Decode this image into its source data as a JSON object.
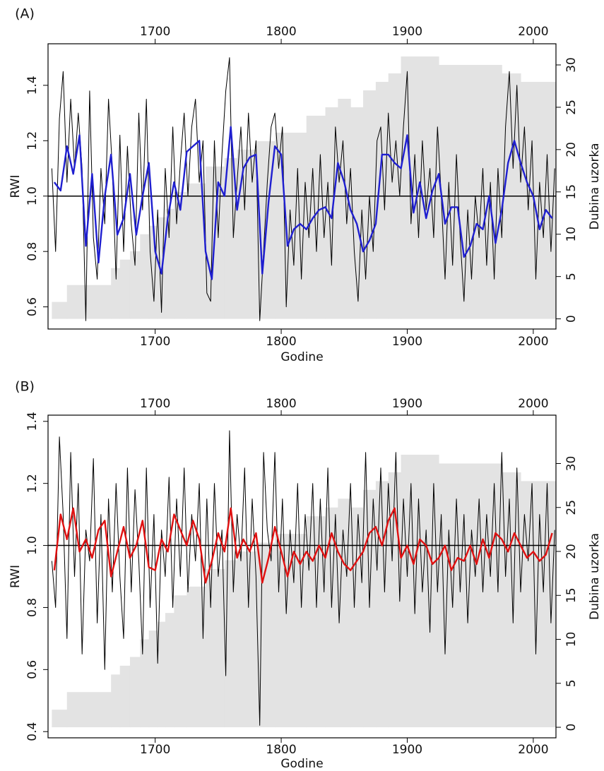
{
  "chart_data": [
    {
      "type": "line",
      "label": "(A)",
      "xlabel": "Godine",
      "ylabel": "RWI",
      "y2label": "Dubina uzorka",
      "xlim": [
        1615,
        2018
      ],
      "xticks": [
        1700,
        1800,
        1900,
        2000
      ],
      "ylim": [
        0.52,
        1.55
      ],
      "yticks": [
        0.6,
        0.8,
        {
          "value": 1,
          "label": "1.0"
        },
        1.2,
        1.4
      ],
      "y2lim": [
        -1.2,
        32.5
      ],
      "y2ticks": [
        0,
        5,
        10,
        15,
        20,
        25,
        30
      ],
      "reference_line": 1,
      "sample_depth": {
        "color": "#e3e3e3",
        "axis": "y2",
        "x": [
          1618,
          1630,
          1665,
          1672,
          1680,
          1688,
          1695,
          1702,
          1708,
          1715,
          1725,
          1740,
          1755,
          1765,
          1780,
          1795,
          1820,
          1835,
          1845,
          1855,
          1865,
          1875,
          1885,
          1895,
          1925,
          1975,
          1990
        ],
        "values": [
          2,
          4,
          6,
          7,
          8,
          10,
          11,
          12,
          13,
          15,
          16,
          18,
          19,
          20,
          21,
          22,
          24,
          25,
          26,
          25,
          27,
          28,
          29,
          31,
          30,
          29,
          28
        ]
      },
      "series": [
        {
          "color": "#000000",
          "x": [
            1618,
            1621,
            1624,
            1627,
            1630,
            1633,
            1636,
            1639,
            1642,
            1645,
            1648,
            1651,
            1654,
            1657,
            1660,
            1663,
            1666,
            1669,
            1672,
            1675,
            1678,
            1681,
            1684,
            1687,
            1690,
            1693,
            1696,
            1699,
            1702,
            1705,
            1708,
            1711,
            1714,
            1717,
            1720,
            1723,
            1726,
            1729,
            1732,
            1735,
            1738,
            1741,
            1744,
            1747,
            1750,
            1753,
            1756,
            1759,
            1762,
            1765,
            1768,
            1771,
            1774,
            1777,
            1780,
            1783,
            1786,
            1789,
            1792,
            1795,
            1798,
            1801,
            1804,
            1807,
            1810,
            1813,
            1816,
            1819,
            1822,
            1825,
            1828,
            1831,
            1834,
            1837,
            1840,
            1843,
            1846,
            1849,
            1852,
            1855,
            1858,
            1861,
            1864,
            1867,
            1870,
            1873,
            1876,
            1879,
            1882,
            1885,
            1888,
            1891,
            1894,
            1897,
            1900,
            1903,
            1906,
            1909,
            1912,
            1915,
            1918,
            1921,
            1924,
            1927,
            1930,
            1933,
            1936,
            1939,
            1942,
            1945,
            1948,
            1951,
            1954,
            1957,
            1960,
            1963,
            1966,
            1969,
            1972,
            1975,
            1978,
            1981,
            1984,
            1987,
            1990,
            1993,
            1996,
            1999,
            2002,
            2005,
            2008,
            2011,
            2014,
            2017
          ],
          "values": [
            1.1,
            0.8,
            1.28,
            1.45,
            1.05,
            1.35,
            1.1,
            1.3,
            1.1,
            0.55,
            1.38,
            0.85,
            0.7,
            1.1,
            0.9,
            1.35,
            1.1,
            0.7,
            1.22,
            0.8,
            1.18,
            0.9,
            0.75,
            1.3,
            0.95,
            1.35,
            0.8,
            0.62,
            0.95,
            0.58,
            1.1,
            0.85,
            1.25,
            0.9,
            1.12,
            1.3,
            1.0,
            1.25,
            1.35,
            1.05,
            1.2,
            0.65,
            0.62,
            1.2,
            0.85,
            1.15,
            1.38,
            1.5,
            0.85,
            1.05,
            1.25,
            0.95,
            1.3,
            1.05,
            1.2,
            0.55,
            0.8,
            1.05,
            1.25,
            1.3,
            1.1,
            1.25,
            0.6,
            0.95,
            0.75,
            1.1,
            0.7,
            1.05,
            0.85,
            1.1,
            0.8,
            1.15,
            0.85,
            1.05,
            0.75,
            1.25,
            1.05,
            1.2,
            0.9,
            1.1,
            0.8,
            0.62,
            0.95,
            0.7,
            1.0,
            0.8,
            1.2,
            1.25,
            0.95,
            1.3,
            1.05,
            1.2,
            1.0,
            1.25,
            1.45,
            0.9,
            1.15,
            0.85,
            1.2,
            0.95,
            1.1,
            0.85,
            1.25,
            1.0,
            0.7,
            1.05,
            0.75,
            1.15,
            0.85,
            0.62,
            0.95,
            0.7,
            1.0,
            0.85,
            1.1,
            0.75,
            1.05,
            0.7,
            1.1,
            0.85,
            1.25,
            1.45,
            1.1,
            1.4,
            1.05,
            1.25,
            0.95,
            1.2,
            0.7,
            1.05,
            0.85,
            1.15,
            0.8,
            1.1
          ]
        },
        {
          "color": "#1f1fd0",
          "x": [
            1620,
            1625,
            1630,
            1635,
            1640,
            1645,
            1650,
            1655,
            1660,
            1665,
            1670,
            1675,
            1680,
            1685,
            1690,
            1695,
            1700,
            1705,
            1710,
            1715,
            1720,
            1725,
            1730,
            1735,
            1740,
            1745,
            1750,
            1755,
            1760,
            1765,
            1770,
            1775,
            1780,
            1785,
            1790,
            1795,
            1800,
            1805,
            1810,
            1815,
            1820,
            1825,
            1830,
            1835,
            1840,
            1845,
            1850,
            1855,
            1860,
            1865,
            1870,
            1875,
            1880,
            1885,
            1890,
            1895,
            1900,
            1905,
            1910,
            1915,
            1920,
            1925,
            1930,
            1935,
            1940,
            1945,
            1950,
            1955,
            1960,
            1965,
            1970,
            1975,
            1980,
            1985,
            1990,
            1995,
            2000,
            2005,
            2010,
            2015
          ],
          "values": [
            1.05,
            1.02,
            1.18,
            1.08,
            1.22,
            0.82,
            1.08,
            0.76,
            1.0,
            1.15,
            0.86,
            0.92,
            1.08,
            0.86,
            1.0,
            1.12,
            0.8,
            0.72,
            0.92,
            1.05,
            0.95,
            1.16,
            1.18,
            1.2,
            0.8,
            0.7,
            1.05,
            1.0,
            1.25,
            0.95,
            1.1,
            1.14,
            1.15,
            0.72,
            0.98,
            1.18,
            1.15,
            0.82,
            0.88,
            0.9,
            0.88,
            0.92,
            0.95,
            0.96,
            0.92,
            1.12,
            1.05,
            0.95,
            0.9,
            0.8,
            0.84,
            0.9,
            1.15,
            1.15,
            1.12,
            1.1,
            1.22,
            0.94,
            1.05,
            0.92,
            1.02,
            1.08,
            0.9,
            0.96,
            0.96,
            0.78,
            0.82,
            0.9,
            0.88,
            1.0,
            0.83,
            0.95,
            1.12,
            1.2,
            1.12,
            1.05,
            1.0,
            0.88,
            0.95,
            0.92
          ]
        }
      ]
    },
    {
      "type": "line",
      "label": "(B)",
      "xlabel": "Godine",
      "ylabel": "RWI",
      "y2label": "Dubina uzorka",
      "xlim": [
        1615,
        2018
      ],
      "xticks": [
        1700,
        1800,
        1900,
        2000
      ],
      "ylim": [
        0.38,
        1.42
      ],
      "yticks": [
        0.4,
        0.6,
        0.8,
        {
          "value": 1,
          "label": "1.0"
        },
        1.2,
        1.4
      ],
      "y2lim": [
        -1.2,
        35.5
      ],
      "y2ticks": [
        0,
        5,
        10,
        15,
        20,
        25,
        30
      ],
      "reference_line": 1,
      "sample_depth": {
        "color": "#e3e3e3",
        "axis": "y2",
        "x": [
          1618,
          1630,
          1665,
          1672,
          1680,
          1688,
          1695,
          1702,
          1708,
          1715,
          1725,
          1740,
          1755,
          1765,
          1780,
          1795,
          1820,
          1835,
          1845,
          1855,
          1865,
          1875,
          1885,
          1895,
          1925,
          1975,
          1990
        ],
        "values": [
          2,
          4,
          6,
          7,
          8,
          10,
          11,
          12,
          13,
          15,
          16,
          18,
          19,
          20,
          21,
          22,
          24,
          25,
          26,
          25,
          27,
          28,
          29,
          31,
          30,
          29,
          28
        ]
      },
      "series": [
        {
          "color": "#000000",
          "x": [
            1618,
            1621,
            1624,
            1627,
            1630,
            1633,
            1636,
            1639,
            1642,
            1645,
            1648,
            1651,
            1654,
            1657,
            1660,
            1663,
            1666,
            1669,
            1672,
            1675,
            1678,
            1681,
            1684,
            1687,
            1690,
            1693,
            1696,
            1699,
            1702,
            1705,
            1708,
            1711,
            1714,
            1717,
            1720,
            1723,
            1726,
            1729,
            1732,
            1735,
            1738,
            1741,
            1744,
            1747,
            1750,
            1753,
            1756,
            1759,
            1762,
            1765,
            1768,
            1771,
            1774,
            1777,
            1780,
            1783,
            1786,
            1789,
            1792,
            1795,
            1798,
            1801,
            1804,
            1807,
            1810,
            1813,
            1816,
            1819,
            1822,
            1825,
            1828,
            1831,
            1834,
            1837,
            1840,
            1843,
            1846,
            1849,
            1852,
            1855,
            1858,
            1861,
            1864,
            1867,
            1870,
            1873,
            1876,
            1879,
            1882,
            1885,
            1888,
            1891,
            1894,
            1897,
            1900,
            1903,
            1906,
            1909,
            1912,
            1915,
            1918,
            1921,
            1924,
            1927,
            1930,
            1933,
            1936,
            1939,
            1942,
            1945,
            1948,
            1951,
            1954,
            1957,
            1960,
            1963,
            1966,
            1969,
            1972,
            1975,
            1978,
            1981,
            1984,
            1987,
            1990,
            1993,
            1996,
            1999,
            2002,
            2005,
            2008,
            2011,
            2014,
            2017
          ],
          "values": [
            0.95,
            0.8,
            1.35,
            1.1,
            0.7,
            1.3,
            0.9,
            1.2,
            0.65,
            1.05,
            0.95,
            1.28,
            0.75,
            1.1,
            0.6,
            1.15,
            0.85,
            1.2,
            0.9,
            0.7,
            1.25,
            0.85,
            1.18,
            0.95,
            0.65,
            1.25,
            0.8,
            1.1,
            0.62,
            1.05,
            0.9,
            1.22,
            0.8,
            1.15,
            0.9,
            1.25,
            0.85,
            1.1,
            0.95,
            1.2,
            0.7,
            1.15,
            0.8,
            1.2,
            0.9,
            1.05,
            0.58,
            1.37,
            0.85,
            1.1,
            0.95,
            1.25,
            0.8,
            1.15,
            0.9,
            0.42,
            1.3,
            1.05,
            0.95,
            1.3,
            0.85,
            1.15,
            0.78,
            1.05,
            0.88,
            1.2,
            0.8,
            1.1,
            0.92,
            1.2,
            0.8,
            1.15,
            0.85,
            1.25,
            0.8,
            1.1,
            0.75,
            1.05,
            0.9,
            1.2,
            0.8,
            1.1,
            0.88,
            1.3,
            0.8,
            1.15,
            0.92,
            1.25,
            0.85,
            1.2,
            0.95,
            1.3,
            0.82,
            1.15,
            0.9,
            1.2,
            0.78,
            1.15,
            0.85,
            1.05,
            0.72,
            1.2,
            0.85,
            1.1,
            0.65,
            1.05,
            0.8,
            1.15,
            0.85,
            1.1,
            0.75,
            1.05,
            0.9,
            1.15,
            0.85,
            1.1,
            0.9,
            1.2,
            0.85,
            1.3,
            0.9,
            1.15,
            0.75,
            1.25,
            0.85,
            1.1,
            0.95,
            1.2,
            0.65,
            1.1,
            0.85,
            1.2,
            0.75,
            1.05
          ]
        },
        {
          "color": "#e01010",
          "x": [
            1620,
            1625,
            1630,
            1635,
            1640,
            1645,
            1650,
            1655,
            1660,
            1665,
            1670,
            1675,
            1680,
            1685,
            1690,
            1695,
            1700,
            1705,
            1710,
            1715,
            1720,
            1725,
            1730,
            1735,
            1740,
            1745,
            1750,
            1755,
            1760,
            1765,
            1770,
            1775,
            1780,
            1785,
            1790,
            1795,
            1800,
            1805,
            1810,
            1815,
            1820,
            1825,
            1830,
            1835,
            1840,
            1845,
            1850,
            1855,
            1860,
            1865,
            1870,
            1875,
            1880,
            1885,
            1890,
            1895,
            1900,
            1905,
            1910,
            1915,
            1920,
            1925,
            1930,
            1935,
            1940,
            1945,
            1950,
            1955,
            1960,
            1965,
            1970,
            1975,
            1980,
            1985,
            1990,
            1995,
            2000,
            2005,
            2010,
            2015
          ],
          "values": [
            0.92,
            1.1,
            1.02,
            1.12,
            0.98,
            1.02,
            0.96,
            1.05,
            1.08,
            0.9,
            0.98,
            1.06,
            0.96,
            1.0,
            1.08,
            0.93,
            0.92,
            1.02,
            0.98,
            1.1,
            1.05,
            1.0,
            1.08,
            1.02,
            0.88,
            0.95,
            1.04,
            0.98,
            1.12,
            0.96,
            1.02,
            0.98,
            1.04,
            0.88,
            0.96,
            1.06,
            0.98,
            0.9,
            0.98,
            0.94,
            0.98,
            0.95,
            1.0,
            0.96,
            1.04,
            0.98,
            0.94,
            0.92,
            0.95,
            0.98,
            1.04,
            1.06,
            1.0,
            1.08,
            1.12,
            0.96,
            1.0,
            0.94,
            1.02,
            1.0,
            0.94,
            0.96,
            1.0,
            0.92,
            0.96,
            0.95,
            1.0,
            0.94,
            1.02,
            0.96,
            1.04,
            1.02,
            0.98,
            1.04,
            1.0,
            0.96,
            0.98,
            0.95,
            0.97,
            1.04
          ]
        }
      ]
    }
  ]
}
